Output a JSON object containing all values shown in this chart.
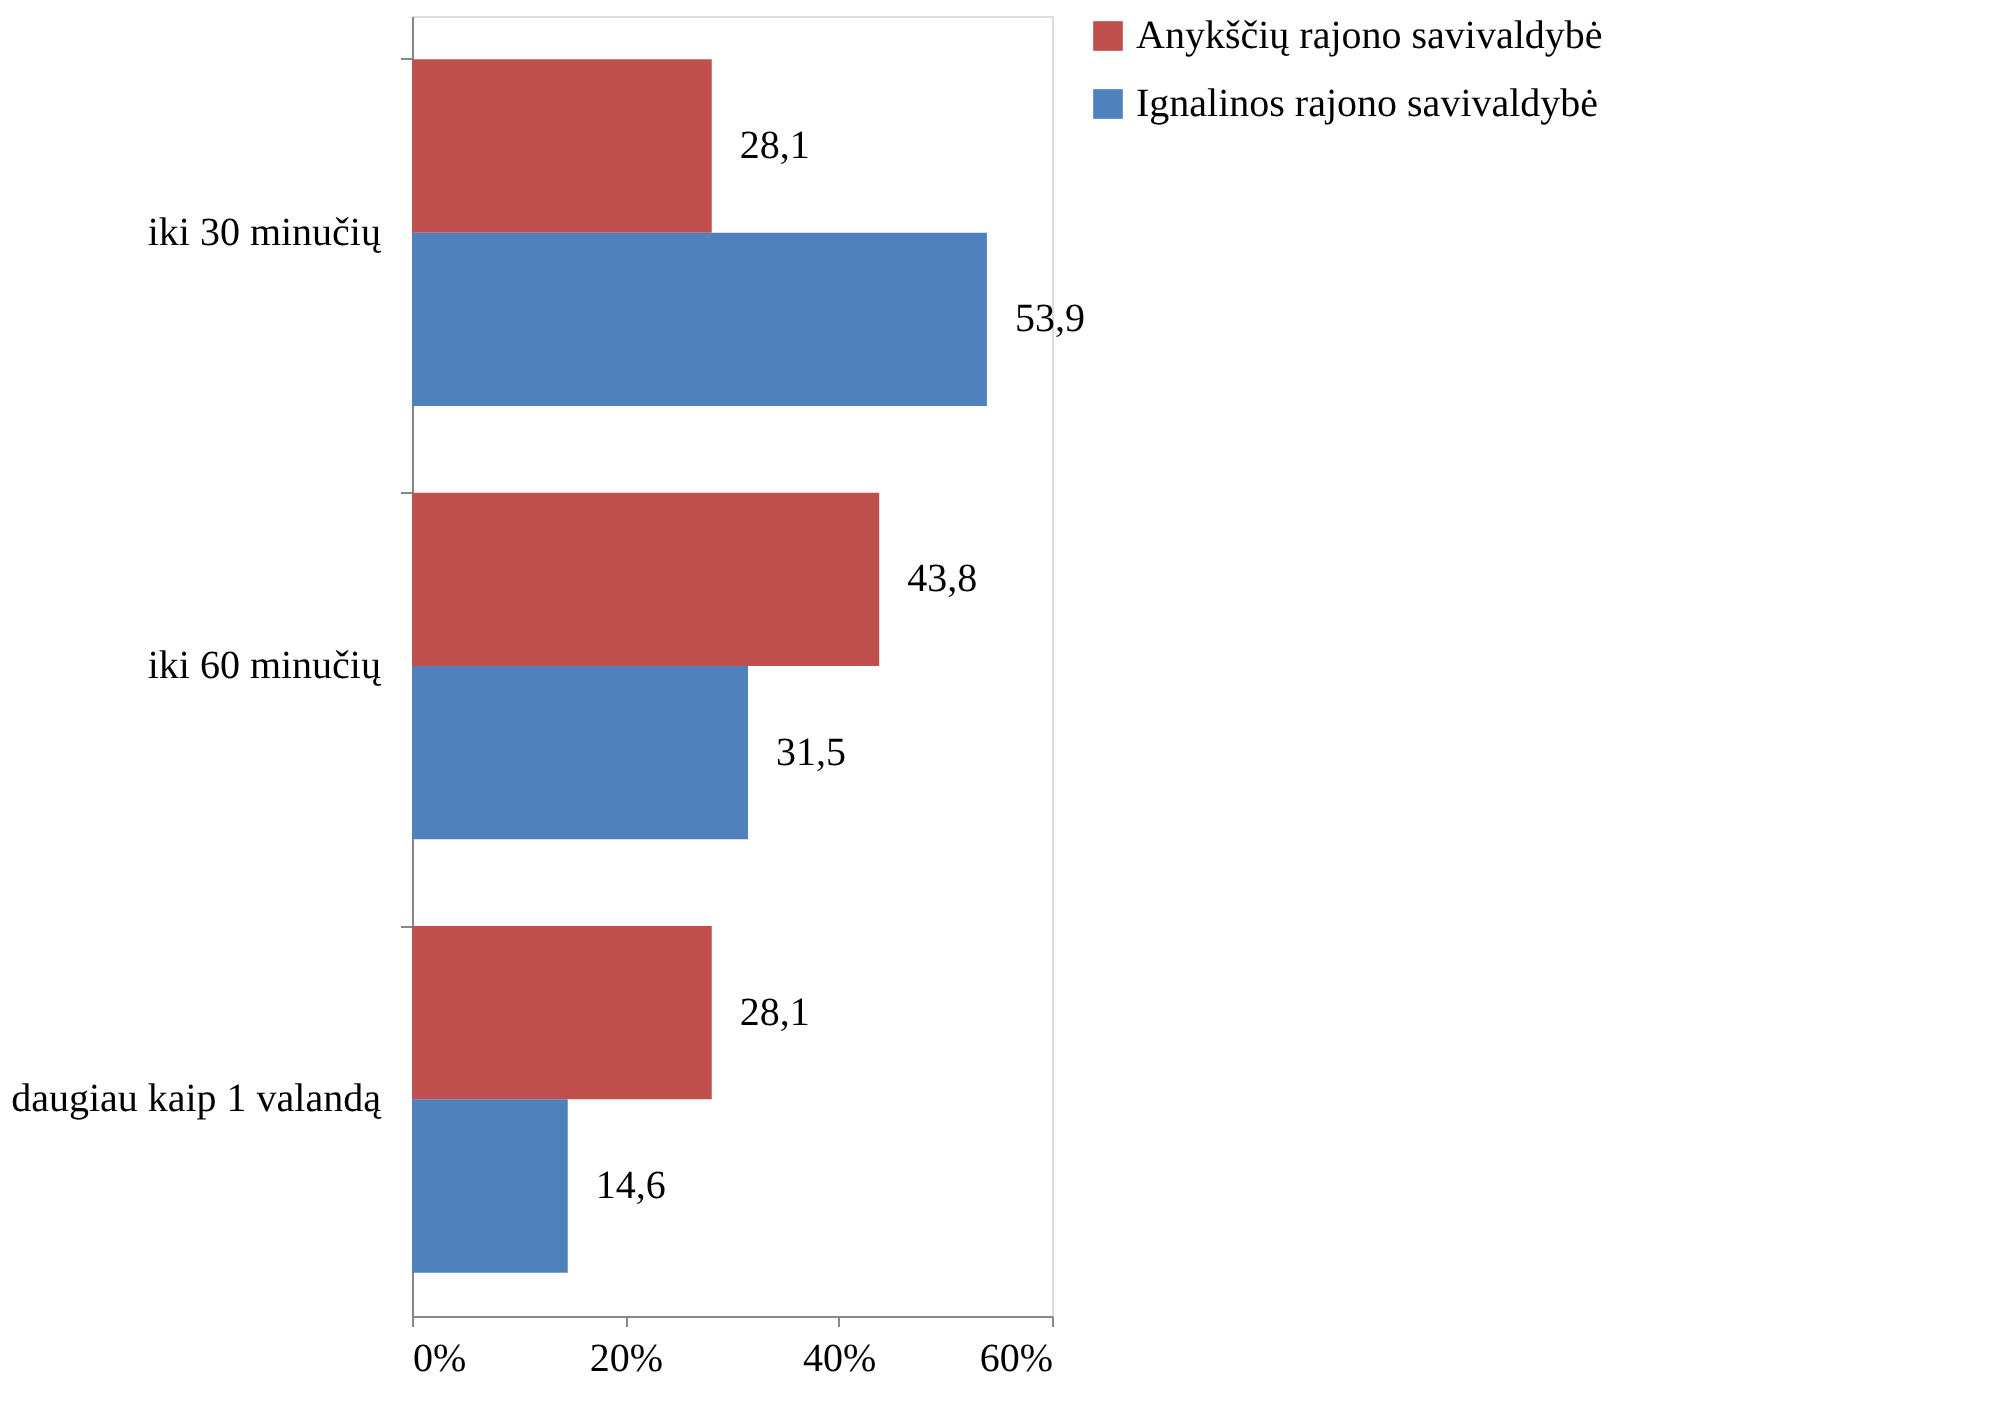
{
  "chart_data": {
    "type": "bar",
    "orientation": "horizontal",
    "categories": [
      "iki 30 minučių",
      "iki 60 minučių",
      "daugiau kaip 1 valandą"
    ],
    "series": [
      {
        "name": "Anykščių rajono savivaldybė",
        "color": "#c0504d",
        "values": [
          28.1,
          43.8,
          28.1
        ],
        "value_labels": [
          "28,1",
          "43,8",
          "28,1"
        ]
      },
      {
        "name": "Ignalinos rajono savivaldybė",
        "color": "#4f81bd",
        "values": [
          53.9,
          31.5,
          14.6
        ],
        "value_labels": [
          "53,9",
          "31,5",
          "14,6"
        ]
      }
    ],
    "xlim": [
      0,
      60
    ],
    "xticks": [
      {
        "value": 0,
        "label": "0%"
      },
      {
        "value": 20,
        "label": "20%"
      },
      {
        "value": 40,
        "label": "40%"
      },
      {
        "value": 60,
        "label": "60%"
      }
    ],
    "grid": false,
    "legend": "right"
  }
}
